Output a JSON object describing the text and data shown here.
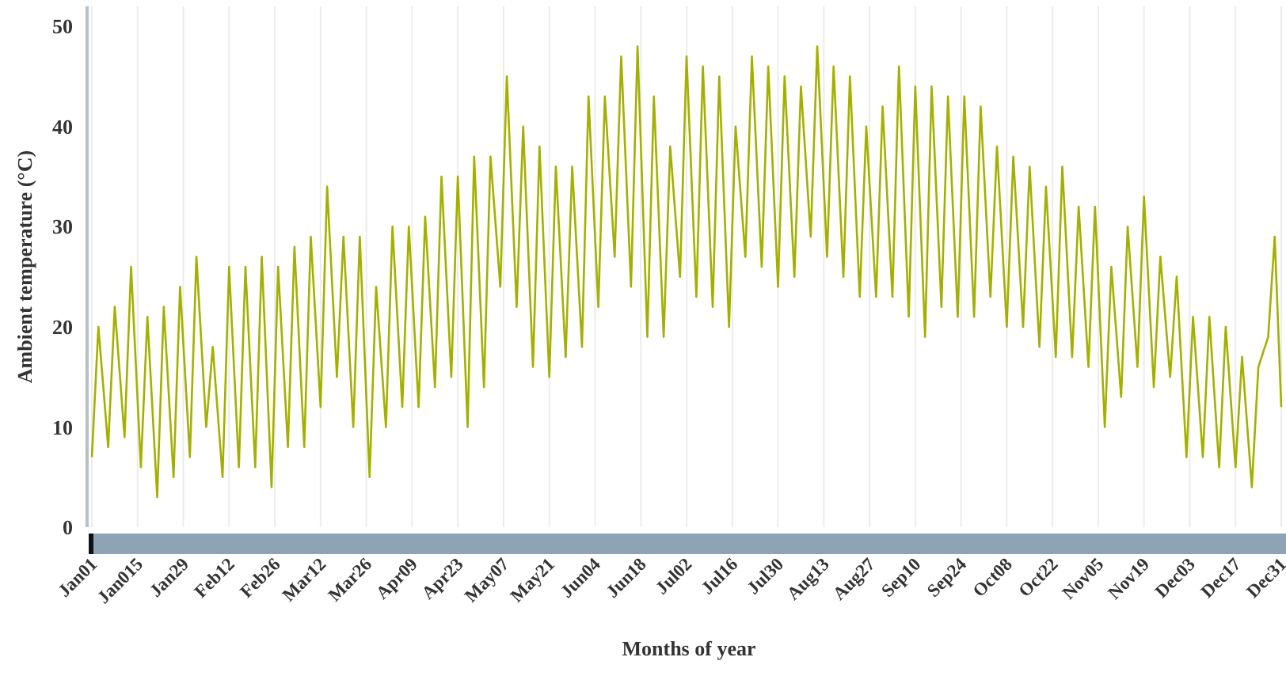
{
  "chart_data": {
    "type": "line",
    "xlabel": "Months of year",
    "ylabel": "Ambient temperature (°C)",
    "xlim": [
      "--01-01",
      "--12-31"
    ],
    "ylim": [
      0,
      52
    ],
    "yticks": [
      0,
      10,
      20,
      30,
      40,
      50
    ],
    "xticks": [
      {
        "value": "--01-01",
        "label": "Jan01"
      },
      {
        "value": "--01-15",
        "label": "Jan015"
      },
      {
        "value": "--01-29",
        "label": "Jan29"
      },
      {
        "value": "--02-12",
        "label": "Feb12"
      },
      {
        "value": "--02-26",
        "label": "Feb26"
      },
      {
        "value": "--03-12",
        "label": "Mar12"
      },
      {
        "value": "--03-26",
        "label": "Mar26"
      },
      {
        "value": "--04-09",
        "label": "Apr09"
      },
      {
        "value": "--04-23",
        "label": "Apr23"
      },
      {
        "value": "--05-07",
        "label": "May07"
      },
      {
        "value": "--05-21",
        "label": "May21"
      },
      {
        "value": "--06-04",
        "label": "Jun04"
      },
      {
        "value": "--06-18",
        "label": "Jun18"
      },
      {
        "value": "--07-02",
        "label": "Jul02"
      },
      {
        "value": "--07-16",
        "label": "Jul16"
      },
      {
        "value": "--07-30",
        "label": "Jul30"
      },
      {
        "value": "--08-13",
        "label": "Aug13"
      },
      {
        "value": "--08-27",
        "label": "Aug27"
      },
      {
        "value": "--09-10",
        "label": "Sep10"
      },
      {
        "value": "--09-24",
        "label": "Sep24"
      },
      {
        "value": "--10-08",
        "label": "Oct08"
      },
      {
        "value": "--10-22",
        "label": "Oct22"
      },
      {
        "value": "--11-05",
        "label": "Nov05"
      },
      {
        "value": "--11-19",
        "label": "Nov19"
      },
      {
        "value": "--12-03",
        "label": "Dec03"
      },
      {
        "value": "--12-17",
        "label": "Dec17"
      },
      {
        "value": "--12-31",
        "label": "Dec31"
      }
    ],
    "grid": "x",
    "marker": "none",
    "line_style": "solid",
    "series": [
      {
        "color": "#a4b000",
        "x": [
          "--01-01",
          "--01-03",
          "--01-06",
          "--01-08",
          "--01-11",
          "--01-13",
          "--01-16",
          "--01-18",
          "--01-21",
          "--01-23",
          "--01-26",
          "--01-28",
          "--01-31",
          "--02-02",
          "--02-05",
          "--02-07",
          "--02-10",
          "--02-12",
          "--02-15",
          "--02-17",
          "--02-20",
          "--02-22",
          "--02-25",
          "--02-27",
          "--03-02",
          "--03-04",
          "--03-07",
          "--03-09",
          "--03-12",
          "--03-14",
          "--03-17",
          "--03-19",
          "--03-22",
          "--03-24",
          "--03-27",
          "--03-29",
          "--04-01",
          "--04-03",
          "--04-06",
          "--04-08",
          "--04-11",
          "--04-13",
          "--04-16",
          "--04-18",
          "--04-21",
          "--04-23",
          "--04-26",
          "--04-28",
          "--05-01",
          "--05-03",
          "--05-06",
          "--05-08",
          "--05-11",
          "--05-13",
          "--05-16",
          "--05-18",
          "--05-21",
          "--05-23",
          "--05-26",
          "--05-28",
          "--05-31",
          "--06-02",
          "--06-05",
          "--06-07",
          "--06-10",
          "--06-12",
          "--06-15",
          "--06-17",
          "--06-20",
          "--06-22",
          "--06-25",
          "--06-27",
          "--06-30",
          "--07-02",
          "--07-05",
          "--07-07",
          "--07-10",
          "--07-12",
          "--07-15",
          "--07-17",
          "--07-20",
          "--07-22",
          "--07-25",
          "--07-27",
          "--07-30",
          "--08-01",
          "--08-04",
          "--08-06",
          "--08-09",
          "--08-11",
          "--08-14",
          "--08-16",
          "--08-19",
          "--08-21",
          "--08-24",
          "--08-26",
          "--08-29",
          "--08-31",
          "--09-03",
          "--09-05",
          "--09-08",
          "--09-10",
          "--09-13",
          "--09-15",
          "--09-18",
          "--09-20",
          "--09-23",
          "--09-25",
          "--09-28",
          "--09-30",
          "--10-03",
          "--10-05",
          "--10-08",
          "--10-10",
          "--10-13",
          "--10-15",
          "--10-18",
          "--10-20",
          "--10-23",
          "--10-25",
          "--10-28",
          "--10-30",
          "--11-02",
          "--11-04",
          "--11-07",
          "--11-09",
          "--11-12",
          "--11-14",
          "--11-17",
          "--11-19",
          "--11-22",
          "--11-24",
          "--11-27",
          "--11-29",
          "--12-02",
          "--12-04",
          "--12-07",
          "--12-09",
          "--12-12",
          "--12-14",
          "--12-17",
          "--12-19",
          "--12-22",
          "--12-24",
          "--12-27",
          "--12-29",
          "--12-31"
        ],
        "values": [
          7,
          20,
          8,
          22,
          9,
          26,
          6,
          21,
          3,
          22,
          5,
          24,
          7,
          27,
          10,
          18,
          5,
          26,
          6,
          26,
          6,
          27,
          4,
          26,
          8,
          28,
          8,
          29,
          12,
          34,
          15,
          29,
          10,
          29,
          5,
          24,
          10,
          30,
          12,
          30,
          12,
          31,
          14,
          35,
          15,
          35,
          10,
          37,
          14,
          37,
          24,
          45,
          22,
          40,
          16,
          38,
          15,
          36,
          17,
          36,
          18,
          43,
          22,
          43,
          27,
          47,
          24,
          48,
          19,
          43,
          19,
          38,
          25,
          47,
          23,
          46,
          22,
          45,
          20,
          40,
          27,
          47,
          26,
          46,
          24,
          45,
          25,
          44,
          29,
          48,
          27,
          46,
          25,
          45,
          23,
          40,
          23,
          42,
          23,
          46,
          21,
          44,
          19,
          44,
          22,
          43,
          21,
          43,
          21,
          42,
          23,
          38,
          20,
          37,
          20,
          36,
          18,
          34,
          17,
          36,
          17,
          32,
          16,
          32,
          10,
          26,
          13,
          30,
          16,
          33,
          14,
          27,
          15,
          25,
          7,
          21,
          7,
          21,
          6,
          20,
          6,
          17,
          4,
          16,
          19,
          29,
          12
        ]
      }
    ]
  }
}
